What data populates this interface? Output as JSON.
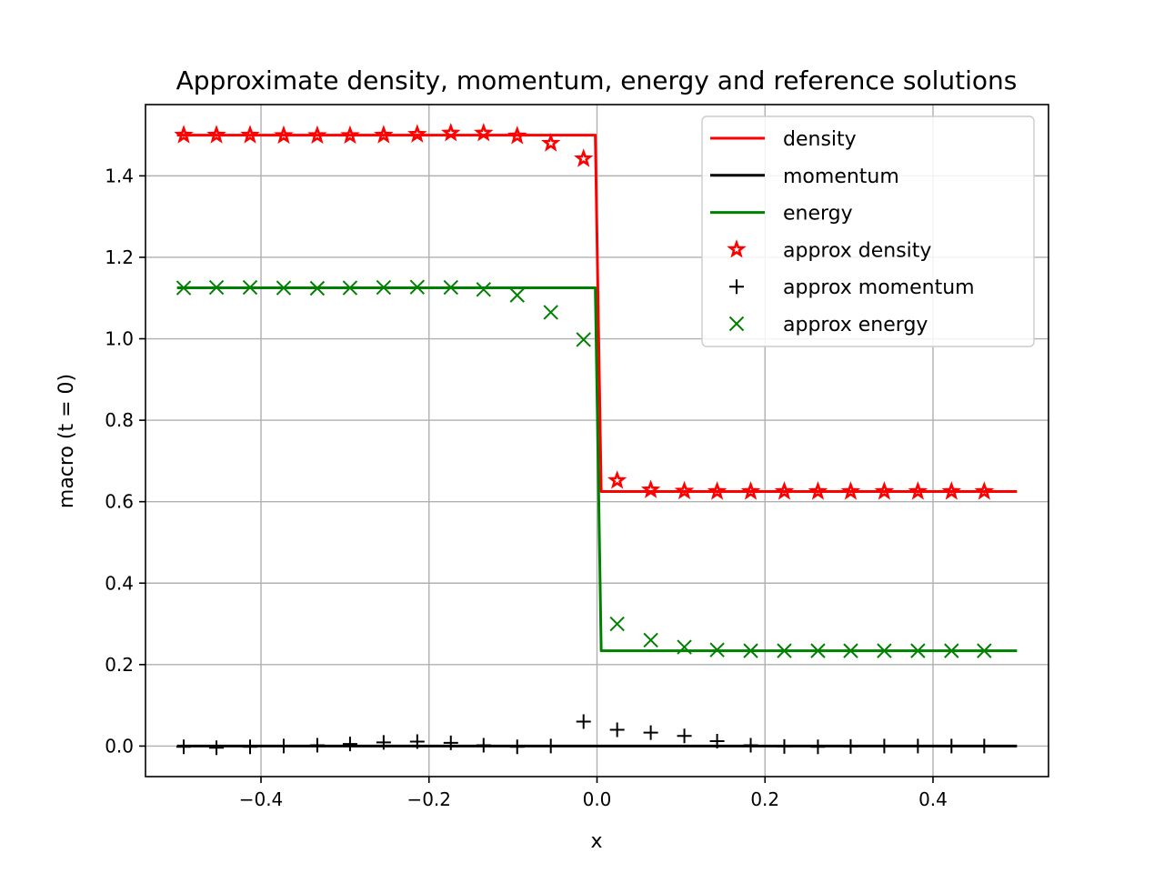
{
  "chart_data": {
    "type": "line",
    "title": "Approximate density, momentum, energy and reference solutions",
    "xlabel": "x",
    "ylabel": "macro (t = 0)",
    "xlim": [
      -0.5375,
      0.5375
    ],
    "ylim": [
      -0.075,
      1.575
    ],
    "x_ticks": [
      -0.4,
      -0.2,
      0.0,
      0.2,
      0.4
    ],
    "x_tick_labels": [
      "−0.4",
      "−0.2",
      "0.0",
      "0.2",
      "0.4"
    ],
    "y_ticks": [
      0.0,
      0.2,
      0.4,
      0.6,
      0.8,
      1.0,
      1.2,
      1.4
    ],
    "y_tick_labels": [
      "0.0",
      "0.2",
      "0.4",
      "0.6",
      "0.8",
      "1.0",
      "1.2",
      "1.4"
    ],
    "grid": true,
    "legend_position": "top-right",
    "series": [
      {
        "name": "density",
        "kind": "line",
        "color": "#ff0000",
        "x": [
          -0.5,
          -0.002,
          0.005,
          0.5
        ],
        "y": [
          1.5,
          1.5,
          0.625,
          0.625
        ]
      },
      {
        "name": "momentum",
        "kind": "line",
        "color": "#000000",
        "x": [
          -0.5,
          0.5
        ],
        "y": [
          0.0,
          0.0
        ]
      },
      {
        "name": "energy",
        "kind": "line",
        "color": "#008000",
        "x": [
          -0.5,
          -0.002,
          0.005,
          0.5
        ],
        "y": [
          1.125,
          1.125,
          0.234,
          0.234
        ]
      },
      {
        "name": "approx density",
        "kind": "scatter",
        "marker": "star",
        "color": "#ff0000",
        "x": [
          -0.492,
          -0.453,
          -0.413,
          -0.373,
          -0.333,
          -0.294,
          -0.254,
          -0.214,
          -0.174,
          -0.135,
          -0.095,
          -0.055,
          -0.016,
          0.024,
          0.064,
          0.104,
          0.143,
          0.183,
          0.223,
          0.263,
          0.302,
          0.342,
          0.382,
          0.422,
          0.461
        ],
        "y": [
          1.5,
          1.5,
          1.5,
          1.499,
          1.499,
          1.499,
          1.5,
          1.502,
          1.505,
          1.505,
          1.498,
          1.48,
          1.442,
          0.652,
          0.629,
          0.626,
          0.625,
          0.625,
          0.625,
          0.625,
          0.625,
          0.625,
          0.625,
          0.625,
          0.625
        ]
      },
      {
        "name": "approx momentum",
        "kind": "scatter",
        "marker": "plus",
        "color": "#000000",
        "x": [
          -0.492,
          -0.453,
          -0.413,
          -0.373,
          -0.333,
          -0.294,
          -0.254,
          -0.214,
          -0.174,
          -0.135,
          -0.095,
          -0.055,
          -0.016,
          0.024,
          0.064,
          0.104,
          0.143,
          0.183,
          0.223,
          0.263,
          0.302,
          0.342,
          0.382,
          0.422,
          0.461
        ],
        "y": [
          -0.002,
          -0.004,
          -0.002,
          0.0,
          0.002,
          0.005,
          0.009,
          0.011,
          0.008,
          0.002,
          -0.002,
          0.0,
          0.06,
          0.04,
          0.033,
          0.025,
          0.012,
          0.002,
          -0.001,
          -0.002,
          -0.001,
          0.0,
          0.0,
          0.0,
          0.0
        ]
      },
      {
        "name": "approx energy",
        "kind": "scatter",
        "marker": "x",
        "color": "#008000",
        "x": [
          -0.492,
          -0.453,
          -0.413,
          -0.373,
          -0.333,
          -0.294,
          -0.254,
          -0.214,
          -0.174,
          -0.135,
          -0.095,
          -0.055,
          -0.016,
          0.024,
          0.064,
          0.104,
          0.143,
          0.183,
          0.223,
          0.263,
          0.302,
          0.342,
          0.382,
          0.422,
          0.461
        ],
        "y": [
          1.125,
          1.126,
          1.126,
          1.125,
          1.124,
          1.125,
          1.126,
          1.127,
          1.126,
          1.121,
          1.107,
          1.065,
          0.998,
          0.3,
          0.26,
          0.243,
          0.236,
          0.234,
          0.234,
          0.234,
          0.234,
          0.234,
          0.234,
          0.234,
          0.234
        ]
      }
    ]
  }
}
